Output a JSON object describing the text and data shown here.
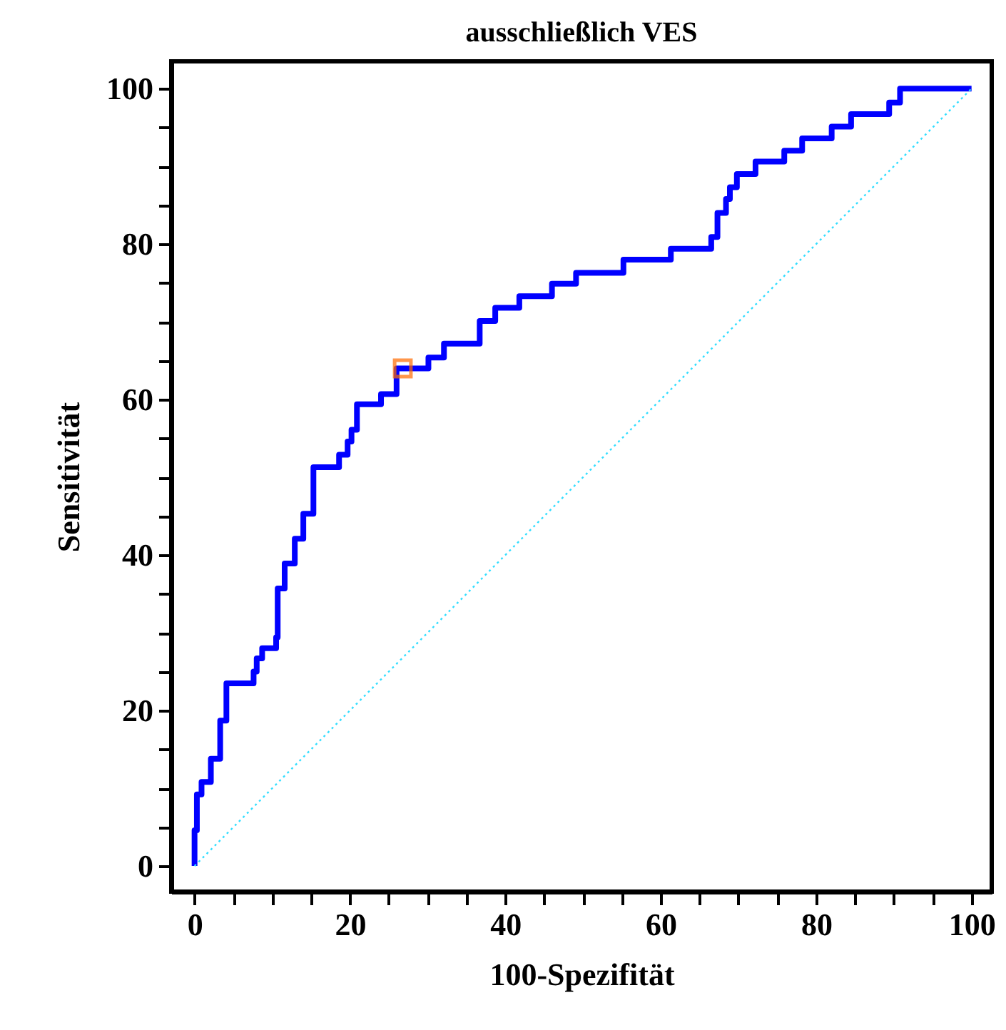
{
  "chart_data": {
    "type": "step",
    "title": "ausschließlich VES",
    "xlabel": "100-Spezifität",
    "ylabel": "Sensitivität",
    "xlim": [
      -3,
      102.6
    ],
    "ylim": [
      -3.3,
      103.5
    ],
    "xticks": [
      0,
      {
        "value": 5,
        "label": null
      },
      {
        "value": 10,
        "label": null
      },
      {
        "value": 15,
        "label": null
      },
      20,
      {
        "value": 25,
        "label": null
      },
      {
        "value": 30,
        "label": null
      },
      {
        "value": 35,
        "label": null
      },
      40,
      {
        "value": 45,
        "label": null
      },
      {
        "value": 50,
        "label": null
      },
      {
        "value": 55,
        "label": null
      },
      60,
      {
        "value": 65,
        "label": null
      },
      {
        "value": 70,
        "label": null
      },
      {
        "value": 75,
        "label": null
      },
      80,
      {
        "value": 85,
        "label": null
      },
      {
        "value": 90,
        "label": null
      },
      {
        "value": 95,
        "label": null
      },
      100
    ],
    "yticks": [
      0,
      {
        "value": 5,
        "label": null
      },
      {
        "value": 10,
        "label": null
      },
      {
        "value": 15,
        "label": null
      },
      20,
      {
        "value": 25,
        "label": null
      },
      {
        "value": 30,
        "label": null
      },
      {
        "value": 35,
        "label": null
      },
      40,
      {
        "value": 45,
        "label": null
      },
      {
        "value": 50,
        "label": null
      },
      {
        "value": 55,
        "label": null
      },
      60,
      {
        "value": 65,
        "label": null
      },
      {
        "value": 70,
        "label": null
      },
      {
        "value": 75,
        "label": null
      },
      80,
      {
        "value": 85,
        "label": null
      },
      {
        "value": 90,
        "label": null
      },
      {
        "value": 95,
        "label": null
      },
      100
    ],
    "series": [
      {
        "color": "#0000ff",
        "line_style": "solid",
        "marker": "none",
        "x": [
          0,
          0,
          0.3,
          0.9,
          2.1,
          3.3,
          4.1,
          7.6,
          8.0,
          8.7,
          10.5,
          10.7,
          11.6,
          12.9,
          14.0,
          15.3,
          18.6,
          19.7,
          20.2,
          20.9,
          24.0,
          26.0,
          30.1,
          32.1,
          36.7,
          38.7,
          41.8,
          46.0,
          49.1,
          55.2,
          61.3,
          66.5,
          67.3,
          68.4,
          68.9,
          69.8,
          72.2,
          75.9,
          78.2,
          82.0,
          84.5,
          89.4,
          90.8,
          100
        ],
        "values": [
          0,
          4.6,
          9.2,
          10.8,
          13.8,
          18.7,
          23.5,
          25.0,
          26.7,
          28.0,
          29.4,
          35.7,
          38.9,
          42.1,
          45.3,
          51.3,
          52.9,
          54.6,
          56.1,
          59.4,
          60.7,
          64.0,
          65.4,
          67.2,
          70.1,
          71.8,
          73.3,
          74.9,
          76.3,
          78.0,
          79.4,
          80.9,
          84.0,
          85.8,
          87.3,
          89.0,
          90.6,
          92.0,
          93.6,
          95.1,
          96.7,
          98.2,
          100,
          100
        ]
      },
      {
        "type": "line",
        "color": "#33ddff",
        "line_style": "dotted",
        "marker": "none",
        "x": [
          0,
          100
        ],
        "values": [
          0,
          100
        ]
      },
      {
        "type": "scatter",
        "color": "#ff6a00",
        "marker": "square",
        "x": [
          26.8
        ],
        "values": [
          64.0
        ]
      }
    ]
  }
}
